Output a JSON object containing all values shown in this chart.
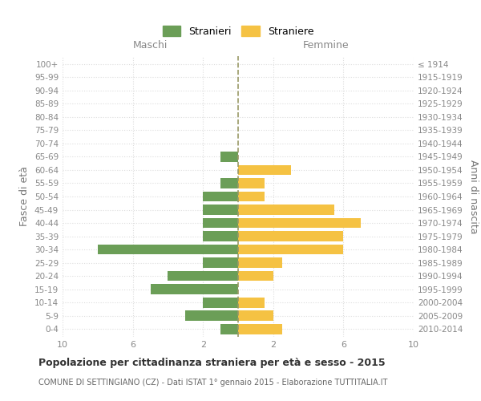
{
  "age_groups": [
    "0-4",
    "5-9",
    "10-14",
    "15-19",
    "20-24",
    "25-29",
    "30-34",
    "35-39",
    "40-44",
    "45-49",
    "50-54",
    "55-59",
    "60-64",
    "65-69",
    "70-74",
    "75-79",
    "80-84",
    "85-89",
    "90-94",
    "95-99",
    "100+"
  ],
  "birth_years": [
    "2010-2014",
    "2005-2009",
    "2000-2004",
    "1995-1999",
    "1990-1994",
    "1985-1989",
    "1980-1984",
    "1975-1979",
    "1970-1974",
    "1965-1969",
    "1960-1964",
    "1955-1959",
    "1950-1954",
    "1945-1949",
    "1940-1944",
    "1935-1939",
    "1930-1934",
    "1925-1929",
    "1920-1924",
    "1915-1919",
    "≤ 1914"
  ],
  "maschi": [
    1,
    3,
    2,
    5,
    4,
    2,
    8,
    2,
    2,
    2,
    2,
    1,
    0,
    1,
    0,
    0,
    0,
    0,
    0,
    0,
    0
  ],
  "femmine": [
    2.5,
    2,
    1.5,
    0,
    2,
    2.5,
    6,
    6,
    7,
    5.5,
    1.5,
    1.5,
    3,
    0,
    0,
    0,
    0,
    0,
    0,
    0,
    0
  ],
  "male_color": "#6b9e57",
  "female_color": "#f5c243",
  "center_line_color": "#999966",
  "grid_color": "#dddddd",
  "title": "Popolazione per cittadinanza straniera per età e sesso - 2015",
  "subtitle": "COMUNE DI SETTINGIANO (CZ) - Dati ISTAT 1° gennaio 2015 - Elaborazione TUTTITALIA.IT",
  "legend_maschi": "Stranieri",
  "legend_femmine": "Straniere",
  "ylabel_left": "Fasce di età",
  "ylabel_right": "Anni di nascita",
  "header_maschi": "Maschi",
  "header_femmine": "Femmine",
  "xlim": 10,
  "background_color": "#ffffff"
}
